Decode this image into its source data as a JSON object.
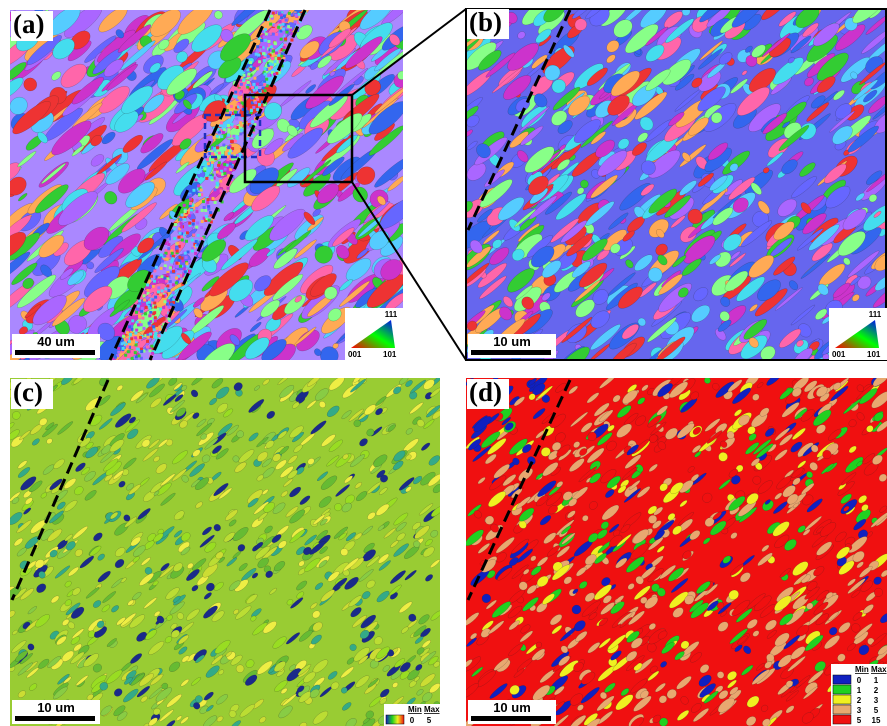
{
  "panels": [
    {
      "label": "(a)",
      "scale_bar": "40 um",
      "ipf_legend": {
        "top": "111",
        "left": "001",
        "right": "101"
      }
    },
    {
      "label": "(b)",
      "scale_bar": "10 um",
      "ipf_legend": {
        "top": "111",
        "left": "001",
        "right": "101"
      }
    },
    {
      "label": "(c)",
      "scale_bar": "10 um",
      "legend": {
        "header": [
          "Min",
          "Max"
        ],
        "rows": [
          [
            "0",
            "5"
          ]
        ]
      }
    },
    {
      "label": "(d)",
      "scale_bar": "10 um",
      "legend": {
        "header": [
          "Min",
          "Max"
        ],
        "rows": [
          [
            "0",
            "1"
          ],
          [
            "1",
            "2"
          ],
          [
            "2",
            "3"
          ],
          [
            "3",
            "5"
          ],
          [
            "5",
            "15"
          ]
        ],
        "colors": [
          "#1020c0",
          "#20d020",
          "#f0f020",
          "#e8a870",
          "#f01010"
        ]
      }
    }
  ]
}
